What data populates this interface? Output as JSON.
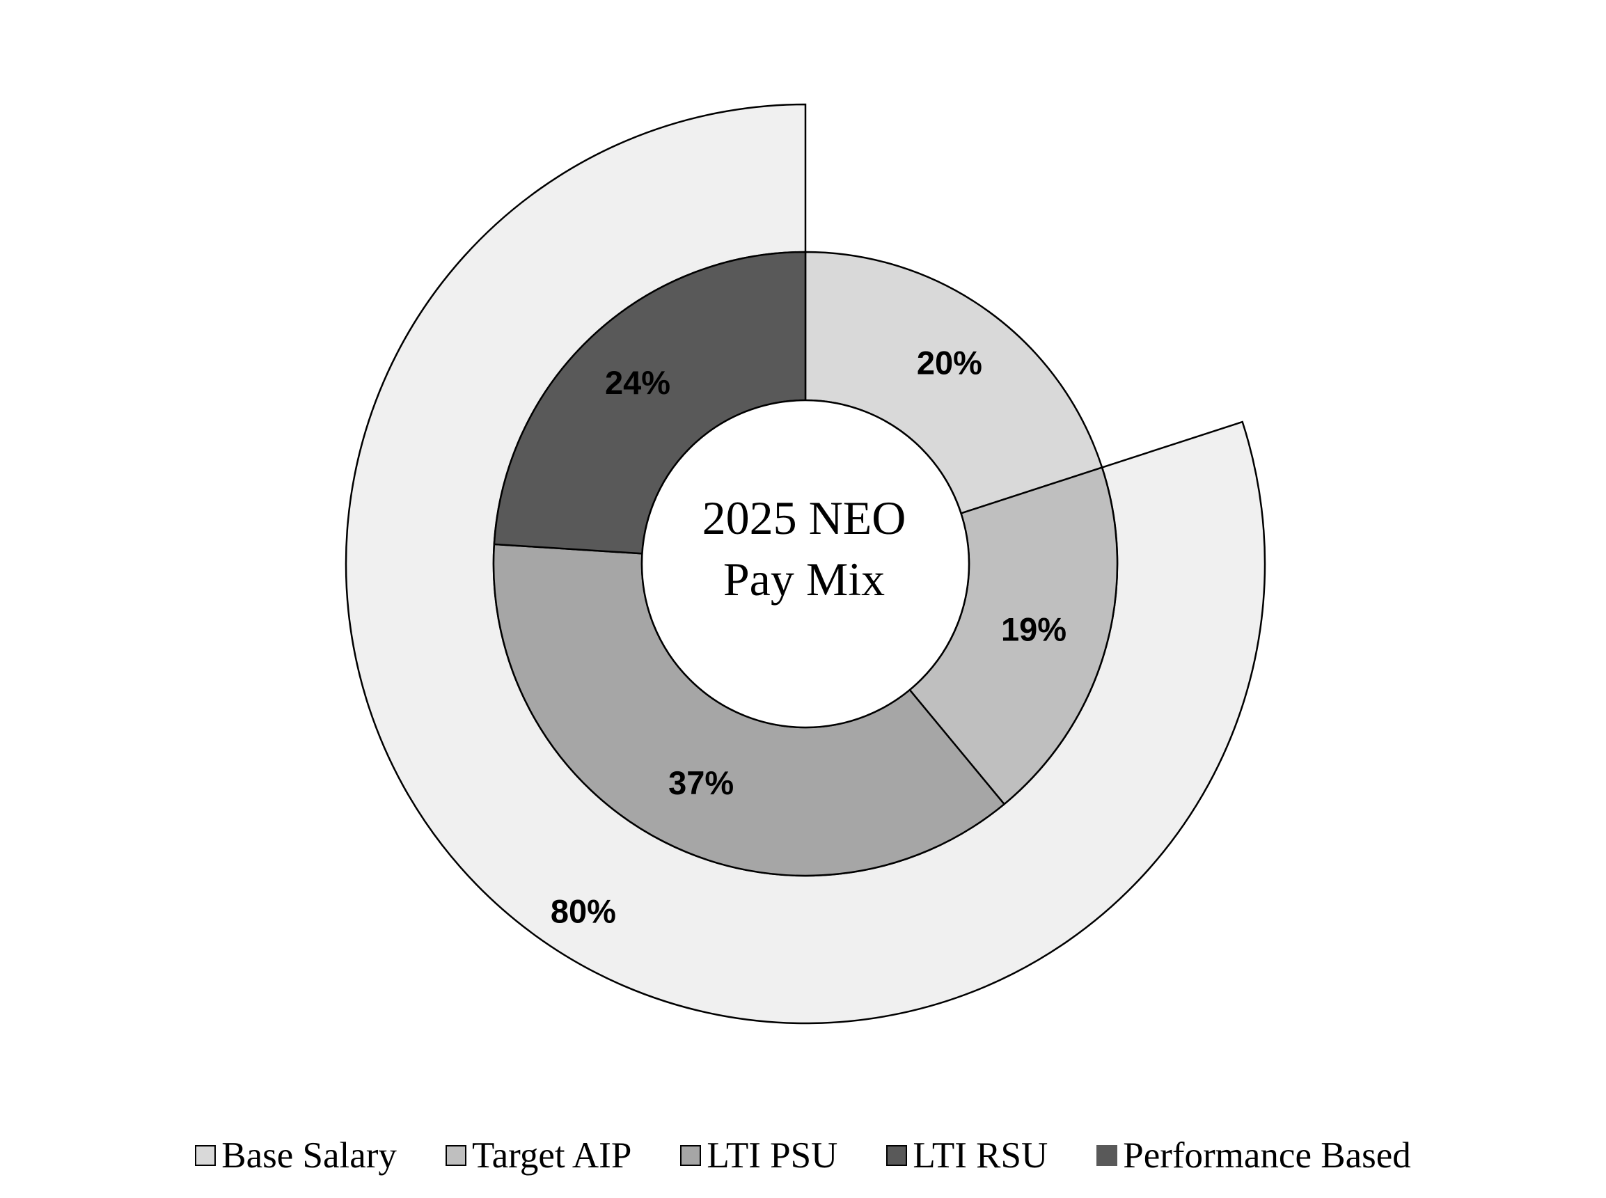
{
  "chart_data": {
    "type": "pie",
    "center_title_lines": [
      "2025 NEO",
      "Pay Mix"
    ],
    "inner_ring": {
      "slices": [
        {
          "name": "Base Salary",
          "value": 20,
          "label": "20%",
          "color": "#d9d9d9"
        },
        {
          "name": "Target AIP",
          "value": 19,
          "label": "19%",
          "color": "#bfbfbf"
        },
        {
          "name": "LTI PSU",
          "value": 37,
          "label": "37%",
          "color": "#a6a6a6"
        },
        {
          "name": "LTI RSU",
          "value": 24,
          "label": "24%",
          "color": "#595959"
        }
      ]
    },
    "outer_ring": {
      "slices": [
        {
          "name": "Performance Based",
          "value": 80,
          "label": "80%",
          "color": "#f0f0f0",
          "start_after_percent": 20
        }
      ]
    },
    "legend": {
      "placement": "bottom",
      "items": [
        {
          "label": "Base Salary",
          "color": "#d9d9d9",
          "bordered": true
        },
        {
          "label": "Target AIP",
          "color": "#bfbfbf",
          "bordered": true
        },
        {
          "label": "LTI PSU",
          "color": "#a6a6a6",
          "bordered": true
        },
        {
          "label": "LTI RSU",
          "color": "#595959",
          "bordered": true
        },
        {
          "label": "Performance Based",
          "color": "#595959",
          "bordered": false
        }
      ]
    }
  }
}
